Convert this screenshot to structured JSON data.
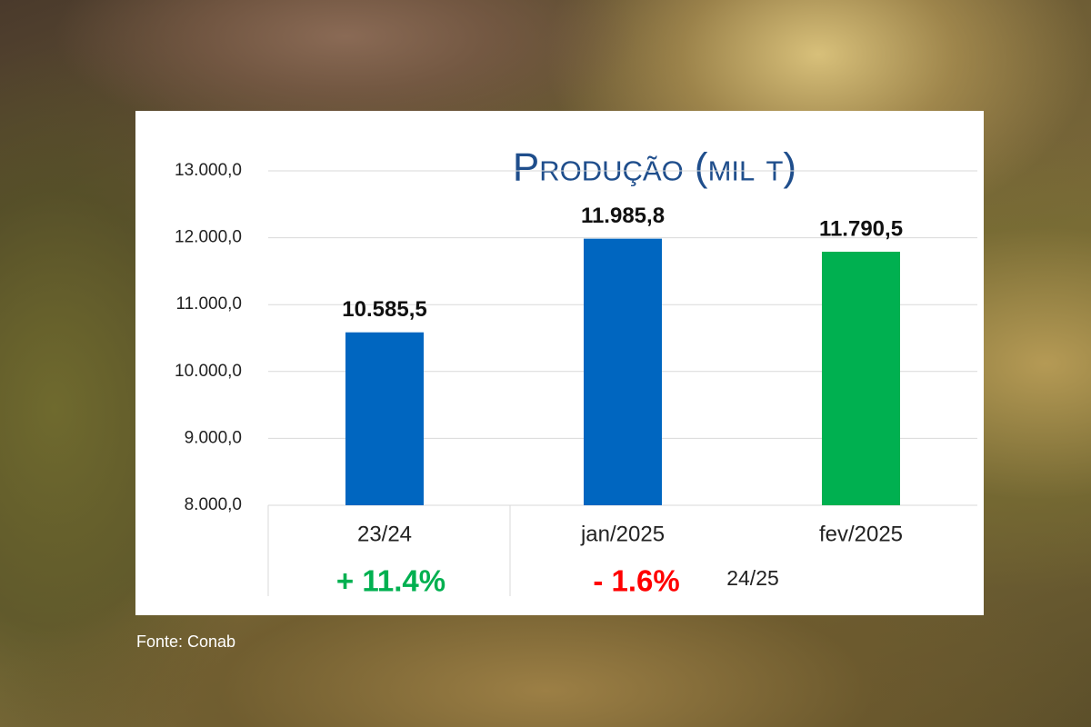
{
  "chart_data": {
    "type": "bar",
    "title": "Produção (mil t)",
    "categories": [
      "23/24",
      "jan/2025",
      "fev/2025"
    ],
    "values": [
      10585.5,
      11985.8,
      11790.5
    ],
    "value_labels": [
      "10.585,5",
      "11.985,8",
      "11.790,5"
    ],
    "colors": [
      "#0066c0",
      "#0066c0",
      "#00b050"
    ],
    "ylim": [
      8000,
      13000
    ],
    "yticks": [
      {
        "value": 8000,
        "label": "8.000,0"
      },
      {
        "value": 9000,
        "label": "9.000,0"
      },
      {
        "value": 10000,
        "label": "10.000,0"
      },
      {
        "value": 11000,
        "label": "11.000,0"
      },
      {
        "value": 12000,
        "label": "12.000,0"
      },
      {
        "value": 13000,
        "label": "13.000,0"
      }
    ],
    "grid": true,
    "annotations": [
      "+ 11.4%",
      "- 1.6%",
      "24/25"
    ],
    "source": "Fonte: Conab"
  }
}
